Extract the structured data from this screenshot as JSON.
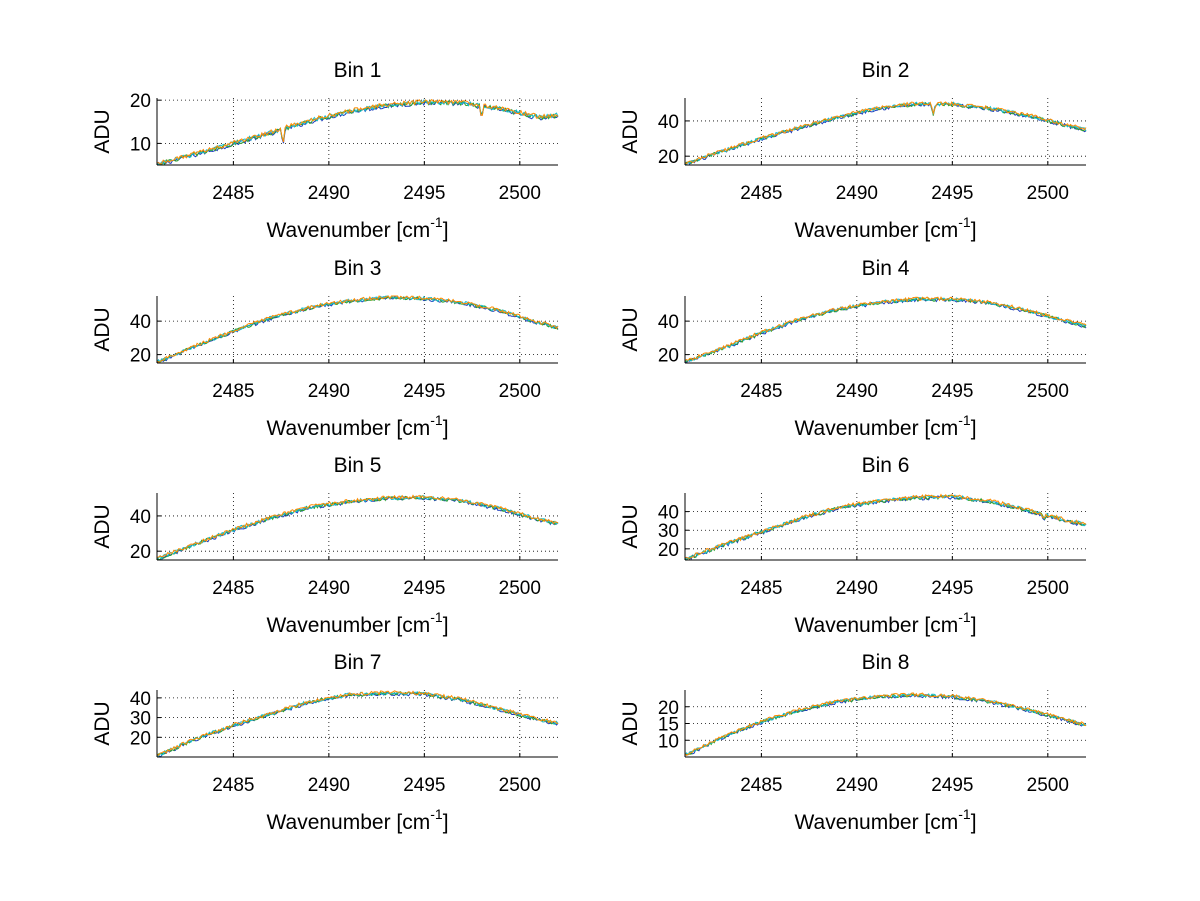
{
  "chart_data": [
    {
      "type": "line",
      "title": "Bin 1",
      "xlabel_main": "Wavenumber [cm",
      "xlabel_sup": "-1",
      "xlabel_end": "]",
      "ylabel": "ADU",
      "xlim": [
        2481,
        2502
      ],
      "ylim": [
        5,
        20.5
      ],
      "xticks": [
        2485,
        2490,
        2495,
        2500
      ],
      "yticks": [
        10,
        20
      ],
      "grid": true,
      "series_count": 4,
      "series_colors": [
        "#1f3fbf",
        "#2ca02c",
        "#17becf",
        "#ff8c00"
      ],
      "profile": {
        "x": [
          2481,
          2483,
          2485,
          2487,
          2489,
          2491,
          2493,
          2495,
          2497,
          2499,
          2501,
          2502
        ],
        "y": [
          5.2,
          7.5,
          10.0,
          12.5,
          15.2,
          17.3,
          18.8,
          19.5,
          19.3,
          18.0,
          16.0,
          16.5
        ]
      },
      "dips": [
        {
          "x": 2487.6,
          "depth": 3.5
        },
        {
          "x": 2498.0,
          "depth": 3.0
        }
      ],
      "noise": 0.5
    },
    {
      "type": "line",
      "title": "Bin 2",
      "xlabel_main": "Wavenumber [cm",
      "xlabel_sup": "-1",
      "xlabel_end": "]",
      "ylabel": "ADU",
      "xlim": [
        2481,
        2502
      ],
      "ylim": [
        15,
        53
      ],
      "xticks": [
        2485,
        2490,
        2495,
        2500
      ],
      "yticks": [
        20,
        40
      ],
      "grid": true,
      "series_count": 4,
      "series_colors": [
        "#1f3fbf",
        "#2ca02c",
        "#17becf",
        "#ff8c00"
      ],
      "profile": {
        "x": [
          2481,
          2483,
          2485,
          2487,
          2489,
          2491,
          2493,
          2495,
          2497,
          2499,
          2501,
          2502
        ],
        "y": [
          15.5,
          23.0,
          30.0,
          36.0,
          42.0,
          47.0,
          49.5,
          49.5,
          47.0,
          43.0,
          37.5,
          35.0
        ]
      },
      "dips": [
        {
          "x": 2494.0,
          "depth": 6.0
        }
      ],
      "noise": 1.0
    },
    {
      "type": "line",
      "title": "Bin 3",
      "xlabel_main": "Wavenumber [cm",
      "xlabel_sup": "-1",
      "xlabel_end": "]",
      "ylabel": "ADU",
      "xlim": [
        2481,
        2502
      ],
      "ylim": [
        15,
        55
      ],
      "xticks": [
        2485,
        2490,
        2495,
        2500
      ],
      "yticks": [
        20,
        40
      ],
      "grid": true,
      "series_count": 4,
      "series_colors": [
        "#1f3fbf",
        "#2ca02c",
        "#17becf",
        "#ff8c00"
      ],
      "profile": {
        "x": [
          2481,
          2483,
          2485,
          2487,
          2489,
          2491,
          2493,
          2495,
          2497,
          2499,
          2501,
          2502
        ],
        "y": [
          15.5,
          25.0,
          34.0,
          42.0,
          48.0,
          52.0,
          54.0,
          53.5,
          51.0,
          46.0,
          39.0,
          36.0
        ]
      },
      "dips": [],
      "noise": 1.0
    },
    {
      "type": "line",
      "title": "Bin 4",
      "xlabel_main": "Wavenumber [cm",
      "xlabel_sup": "-1",
      "xlabel_end": "]",
      "ylabel": "ADU",
      "xlim": [
        2481,
        2502
      ],
      "ylim": [
        15,
        55
      ],
      "xticks": [
        2485,
        2490,
        2495,
        2500
      ],
      "yticks": [
        20,
        40
      ],
      "grid": true,
      "series_count": 4,
      "series_colors": [
        "#1f3fbf",
        "#2ca02c",
        "#17becf",
        "#ff8c00"
      ],
      "profile": {
        "x": [
          2481,
          2483,
          2485,
          2487,
          2489,
          2491,
          2493,
          2495,
          2497,
          2499,
          2501,
          2502
        ],
        "y": [
          15.5,
          24.0,
          33.0,
          41.0,
          47.0,
          51.0,
          53.0,
          53.0,
          51.0,
          46.0,
          40.0,
          37.0
        ]
      },
      "dips": [],
      "noise": 1.0
    },
    {
      "type": "line",
      "title": "Bin 5",
      "xlabel_main": "Wavenumber [cm",
      "xlabel_sup": "-1",
      "xlabel_end": "]",
      "ylabel": "ADU",
      "xlim": [
        2481,
        2502
      ],
      "ylim": [
        15,
        53
      ],
      "xticks": [
        2485,
        2490,
        2495,
        2500
      ],
      "yticks": [
        20,
        40
      ],
      "grid": true,
      "series_count": 4,
      "series_colors": [
        "#1f3fbf",
        "#2ca02c",
        "#17becf",
        "#ff8c00"
      ],
      "profile": {
        "x": [
          2481,
          2483,
          2485,
          2487,
          2489,
          2491,
          2493,
          2495,
          2497,
          2499,
          2501,
          2502
        ],
        "y": [
          15.5,
          24.0,
          32.0,
          39.0,
          45.0,
          48.0,
          50.0,
          50.5,
          48.5,
          44.0,
          38.0,
          35.5
        ]
      },
      "dips": [],
      "noise": 1.0
    },
    {
      "type": "line",
      "title": "Bin 6",
      "xlabel_main": "Wavenumber [cm",
      "xlabel_sup": "-1",
      "xlabel_end": "]",
      "ylabel": "ADU",
      "xlim": [
        2481,
        2502
      ],
      "ylim": [
        14,
        50
      ],
      "xticks": [
        2485,
        2490,
        2495,
        2500
      ],
      "yticks": [
        20,
        30,
        40
      ],
      "grid": true,
      "series_count": 4,
      "series_colors": [
        "#1f3fbf",
        "#2ca02c",
        "#17becf",
        "#ff8c00"
      ],
      "profile": {
        "x": [
          2481,
          2483,
          2485,
          2487,
          2489,
          2491,
          2493,
          2495,
          2497,
          2499,
          2501,
          2502
        ],
        "y": [
          14.5,
          22.0,
          29.0,
          36.0,
          42.0,
          45.5,
          47.5,
          48.0,
          45.5,
          40.5,
          35.0,
          33.0
        ]
      },
      "dips": [
        {
          "x": 2499.8,
          "depth": 3.0
        }
      ],
      "noise": 1.0
    },
    {
      "type": "line",
      "title": "Bin 7",
      "xlabel_main": "Wavenumber [cm",
      "xlabel_sup": "-1",
      "xlabel_end": "]",
      "ylabel": "ADU",
      "xlim": [
        2481,
        2502
      ],
      "ylim": [
        10,
        44
      ],
      "xticks": [
        2485,
        2490,
        2495,
        2500
      ],
      "yticks": [
        20,
        30,
        40
      ],
      "grid": true,
      "series_count": 4,
      "series_colors": [
        "#1f3fbf",
        "#2ca02c",
        "#17becf",
        "#ff8c00"
      ],
      "profile": {
        "x": [
          2481,
          2483,
          2485,
          2487,
          2489,
          2491,
          2493,
          2495,
          2497,
          2499,
          2501,
          2502
        ],
        "y": [
          10.5,
          19.0,
          26.0,
          32.0,
          38.0,
          41.5,
          42.5,
          42.0,
          39.0,
          34.0,
          29.0,
          27.0
        ]
      },
      "dips": [],
      "noise": 0.9
    },
    {
      "type": "line",
      "title": "Bin 8",
      "xlabel_main": "Wavenumber [cm",
      "xlabel_sup": "-1",
      "xlabel_end": "]",
      "ylabel": "ADU",
      "xlim": [
        2481,
        2502
      ],
      "ylim": [
        5,
        25
      ],
      "xticks": [
        2485,
        2490,
        2495,
        2500
      ],
      "yticks": [
        10,
        15,
        20
      ],
      "grid": true,
      "series_count": 4,
      "series_colors": [
        "#1f3fbf",
        "#2ca02c",
        "#17becf",
        "#ff8c00"
      ],
      "profile": {
        "x": [
          2481,
          2483,
          2485,
          2487,
          2489,
          2491,
          2493,
          2495,
          2497,
          2499,
          2501,
          2502
        ],
        "y": [
          5.5,
          11.0,
          15.5,
          19.0,
          21.5,
          23.0,
          23.5,
          23.0,
          21.5,
          19.0,
          16.0,
          14.5
        ]
      },
      "dips": [],
      "noise": 0.5
    }
  ]
}
